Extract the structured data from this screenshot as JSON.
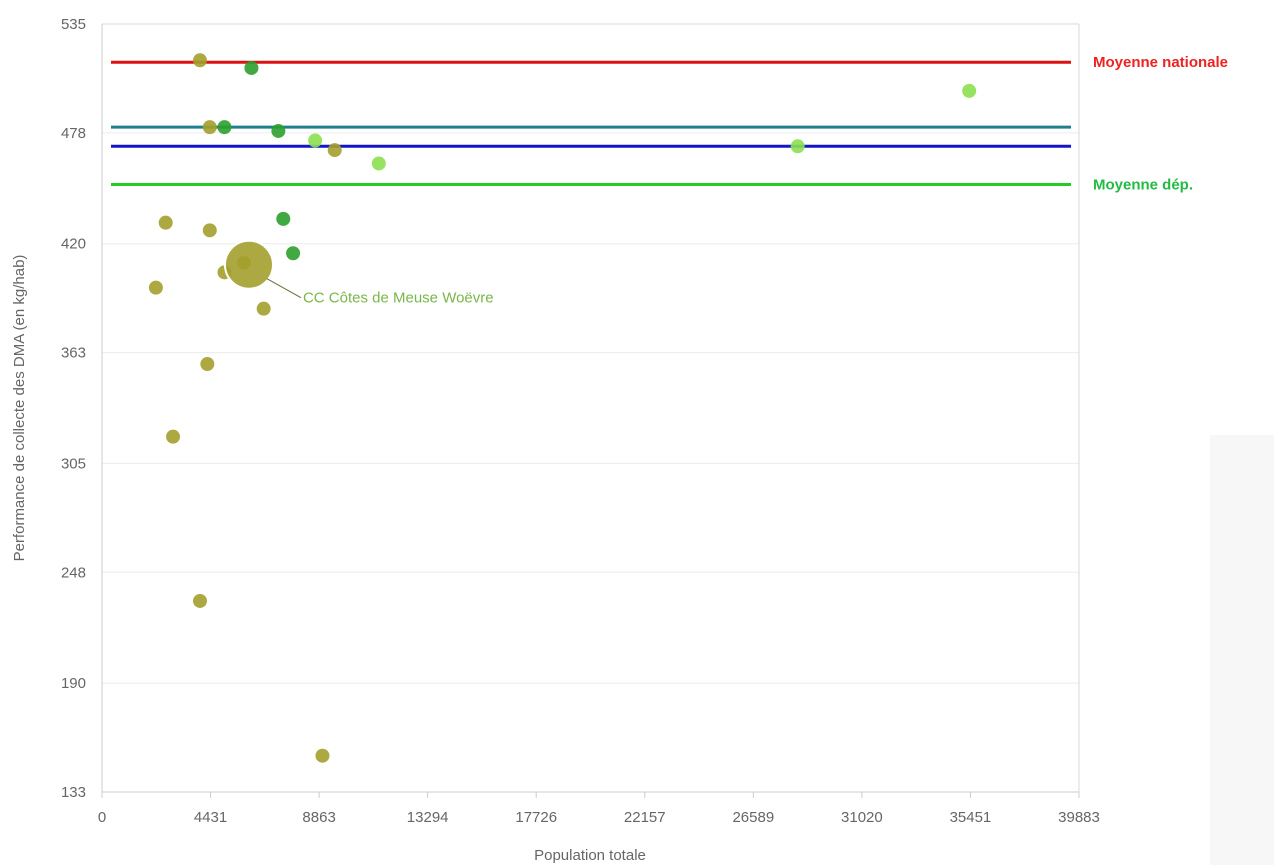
{
  "chart_data": {
    "type": "scatter",
    "title": "",
    "xlabel": "Population totale",
    "ylabel": "Performance de collecte des DMA (en  kg/hab)",
    "xlim": [
      0,
      39883
    ],
    "ylim": [
      133,
      535
    ],
    "x_ticks": [
      "0",
      "4431",
      "8863",
      "13294",
      "17726",
      "22157",
      "26589",
      "31020",
      "35451",
      "39883"
    ],
    "y_ticks": [
      "535",
      "478",
      "420",
      "363",
      "305",
      "248",
      "190",
      "133"
    ],
    "grid": "horizontal",
    "reference_lines": [
      {
        "label": "Moyenne nationale",
        "value": 515,
        "color": "#dd1111",
        "label_color": "#ee2222"
      },
      {
        "label": "",
        "value": 481,
        "color": "#1f7f8f",
        "label_color": ""
      },
      {
        "label": "",
        "value": 471,
        "color": "#1414c8",
        "label_color": ""
      },
      {
        "label": "Moyenne dép.",
        "value": 451,
        "color": "#22cc22",
        "label_color": "#22bb44"
      }
    ],
    "series": [
      {
        "color": "#a4a02e",
        "points": [
          {
            "x": 4000,
            "y": 516
          },
          {
            "x": 4400,
            "y": 481
          },
          {
            "x": 9500,
            "y": 469
          },
          {
            "x": 2600,
            "y": 431
          },
          {
            "x": 4400,
            "y": 427
          },
          {
            "x": 2200,
            "y": 397
          },
          {
            "x": 5000,
            "y": 405
          },
          {
            "x": 5800,
            "y": 410
          },
          {
            "x": 6600,
            "y": 386
          },
          {
            "x": 4300,
            "y": 357
          },
          {
            "x": 2900,
            "y": 319
          },
          {
            "x": 4000,
            "y": 233
          },
          {
            "x": 9000,
            "y": 152
          }
        ]
      },
      {
        "color": "#2ea02e",
        "points": [
          {
            "x": 6100,
            "y": 512
          },
          {
            "x": 5000,
            "y": 481
          },
          {
            "x": 7200,
            "y": 479
          },
          {
            "x": 7400,
            "y": 433
          },
          {
            "x": 7800,
            "y": 415
          }
        ]
      },
      {
        "color": "#8ce050",
        "points": [
          {
            "x": 8700,
            "y": 474
          },
          {
            "x": 11300,
            "y": 462
          },
          {
            "x": 28400,
            "y": 471
          },
          {
            "x": 35400,
            "y": 500
          }
        ]
      }
    ],
    "highlight": {
      "label": "CC Côtes de Meuse Woëvre",
      "x": 6000,
      "y": 409,
      "color": "#a4a02e"
    }
  }
}
